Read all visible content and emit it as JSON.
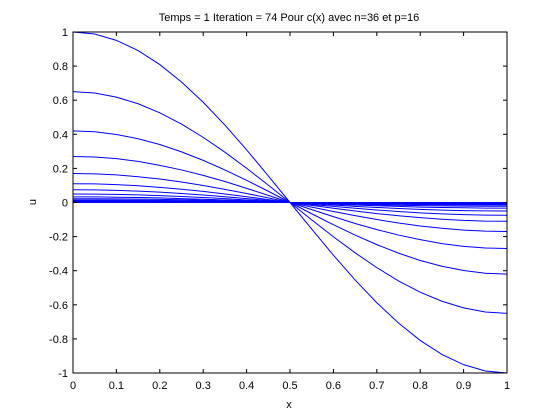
{
  "chart_data": {
    "type": "line",
    "title": "Temps = 1 Iteration = 74 Pour c(x) avec n=36 et p=16",
    "xlabel": "x",
    "ylabel": "u",
    "xlim": [
      0,
      1
    ],
    "ylim": [
      -1,
      1
    ],
    "xticks": [
      0,
      0.1,
      0.2,
      0.3,
      0.4,
      0.5,
      0.6,
      0.7,
      0.8,
      0.9,
      1
    ],
    "xtick_labels": [
      "0",
      "0.1",
      "0.2",
      "0.3",
      "0.4",
      "0.5",
      "0.6",
      "0.7",
      "0.8",
      "0.9",
      "1"
    ],
    "yticks": [
      -1,
      -0.8,
      -0.6,
      -0.4,
      -0.2,
      0,
      0.2,
      0.4,
      0.6,
      0.8,
      1
    ],
    "ytick_labels": [
      "-1",
      "-0.8",
      "-0.6",
      "-0.4",
      "-0.2",
      "0",
      "0.2",
      "0.4",
      "0.6",
      "0.8",
      "1"
    ],
    "grid": false,
    "legend": "none",
    "line_color": "#0000ff",
    "x": [
      0,
      0.05,
      0.1,
      0.15,
      0.2,
      0.25,
      0.3,
      0.35,
      0.4,
      0.45,
      0.5,
      0.55,
      0.6,
      0.65,
      0.7,
      0.75,
      0.8,
      0.85,
      0.9,
      0.95,
      1
    ],
    "series": [
      {
        "values": [
          1.0,
          0.988,
          0.951,
          0.891,
          0.809,
          0.707,
          0.588,
          0.454,
          0.309,
          0.156,
          0.0,
          -0.156,
          -0.309,
          -0.454,
          -0.588,
          -0.707,
          -0.809,
          -0.891,
          -0.951,
          -0.988,
          -1.0
        ]
      },
      {
        "values": [
          0.65,
          0.642,
          0.618,
          0.579,
          0.526,
          0.46,
          0.382,
          0.295,
          0.201,
          0.102,
          0.0,
          -0.102,
          -0.201,
          -0.295,
          -0.382,
          -0.46,
          -0.526,
          -0.579,
          -0.618,
          -0.642,
          -0.65
        ]
      },
      {
        "values": [
          0.42,
          0.415,
          0.399,
          0.374,
          0.34,
          0.297,
          0.247,
          0.191,
          0.13,
          0.066,
          0.0,
          -0.066,
          -0.13,
          -0.191,
          -0.247,
          -0.297,
          -0.34,
          -0.374,
          -0.399,
          -0.415,
          -0.42
        ]
      },
      {
        "values": [
          0.27,
          0.267,
          0.257,
          0.241,
          0.218,
          0.191,
          0.159,
          0.123,
          0.083,
          0.042,
          0.0,
          -0.042,
          -0.083,
          -0.123,
          -0.159,
          -0.191,
          -0.218,
          -0.241,
          -0.257,
          -0.267,
          -0.27
        ]
      },
      {
        "values": [
          0.17,
          0.168,
          0.162,
          0.151,
          0.138,
          0.12,
          0.1,
          0.077,
          0.053,
          0.027,
          0.0,
          -0.027,
          -0.053,
          -0.077,
          -0.1,
          -0.12,
          -0.138,
          -0.151,
          -0.162,
          -0.168,
          -0.17
        ]
      },
      {
        "values": [
          0.11,
          0.109,
          0.105,
          0.098,
          0.089,
          0.078,
          0.065,
          0.05,
          0.034,
          0.017,
          0.0,
          -0.017,
          -0.034,
          -0.05,
          -0.065,
          -0.078,
          -0.089,
          -0.098,
          -0.105,
          -0.109,
          -0.11
        ]
      },
      {
        "values": [
          0.075,
          0.074,
          0.071,
          0.067,
          0.061,
          0.053,
          0.044,
          0.034,
          0.023,
          0.012,
          0.0,
          -0.012,
          -0.023,
          -0.034,
          -0.044,
          -0.053,
          -0.061,
          -0.067,
          -0.071,
          -0.074,
          -0.075
        ]
      },
      {
        "values": [
          0.05,
          0.049,
          0.048,
          0.045,
          0.04,
          0.035,
          0.029,
          0.023,
          0.015,
          0.008,
          0.0,
          -0.008,
          -0.015,
          -0.023,
          -0.029,
          -0.035,
          -0.04,
          -0.045,
          -0.048,
          -0.049,
          -0.05
        ]
      },
      {
        "values": [
          0.033,
          0.033,
          0.031,
          0.029,
          0.027,
          0.023,
          0.019,
          0.015,
          0.01,
          0.005,
          0.0,
          -0.005,
          -0.01,
          -0.015,
          -0.019,
          -0.023,
          -0.027,
          -0.029,
          -0.031,
          -0.033,
          -0.033
        ]
      },
      {
        "values": [
          0.022,
          0.022,
          0.021,
          0.02,
          0.018,
          0.016,
          0.013,
          0.01,
          0.007,
          0.003,
          0.0,
          -0.003,
          -0.007,
          -0.01,
          -0.013,
          -0.016,
          -0.018,
          -0.02,
          -0.021,
          -0.022,
          -0.022
        ]
      },
      {
        "values": [
          0.015,
          0.015,
          0.014,
          0.013,
          0.012,
          0.011,
          0.009,
          0.007,
          0.005,
          0.002,
          0.0,
          -0.002,
          -0.005,
          -0.007,
          -0.009,
          -0.011,
          -0.012,
          -0.013,
          -0.014,
          -0.015,
          -0.015
        ]
      },
      {
        "values": [
          0.01,
          0.01,
          0.01,
          0.009,
          0.008,
          0.007,
          0.006,
          0.005,
          0.003,
          0.002,
          0.0,
          -0.002,
          -0.003,
          -0.005,
          -0.006,
          -0.007,
          -0.008,
          -0.009,
          -0.01,
          -0.01,
          -0.01
        ]
      },
      {
        "values": [
          0.007,
          0.007,
          0.007,
          0.006,
          0.006,
          0.005,
          0.004,
          0.003,
          0.002,
          0.001,
          0.0,
          -0.001,
          -0.002,
          -0.003,
          -0.004,
          -0.005,
          -0.006,
          -0.006,
          -0.007,
          -0.007,
          -0.007
        ]
      },
      {
        "values": [
          0.005,
          0.005,
          0.005,
          0.004,
          0.004,
          0.004,
          0.003,
          0.002,
          0.002,
          0.001,
          0.0,
          -0.001,
          -0.002,
          -0.002,
          -0.003,
          -0.004,
          -0.004,
          -0.004,
          -0.005,
          -0.005,
          -0.005
        ]
      },
      {
        "values": [
          0.003,
          0.003,
          0.003,
          0.003,
          0.002,
          0.002,
          0.002,
          0.001,
          0.001,
          0.0,
          0.0,
          0.0,
          -0.001,
          -0.001,
          -0.002,
          -0.002,
          -0.002,
          -0.003,
          -0.003,
          -0.003,
          -0.003
        ]
      },
      {
        "values": [
          0.002,
          0.002,
          0.002,
          0.002,
          0.002,
          0.001,
          0.001,
          0.001,
          0.001,
          0.0,
          0.0,
          0.0,
          -0.001,
          -0.001,
          -0.001,
          -0.001,
          -0.002,
          -0.002,
          -0.002,
          -0.002,
          -0.002
        ]
      },
      {
        "values": [
          0.001,
          0.001,
          0.001,
          0.001,
          0.001,
          0.001,
          0.001,
          0.0,
          0.0,
          0.0,
          0.0,
          0.0,
          0.0,
          0.0,
          -0.001,
          -0.001,
          -0.001,
          -0.001,
          -0.001,
          -0.001,
          -0.001
        ]
      },
      {
        "values": [
          0.0,
          0.0,
          0.0,
          0.0,
          0.0,
          0.0,
          0.0,
          0.0,
          0.0,
          0.0,
          0.0,
          0.0,
          0.0,
          0.0,
          0.0,
          0.0,
          0.0,
          0.0,
          0.0,
          0.0,
          0.0
        ]
      }
    ]
  }
}
